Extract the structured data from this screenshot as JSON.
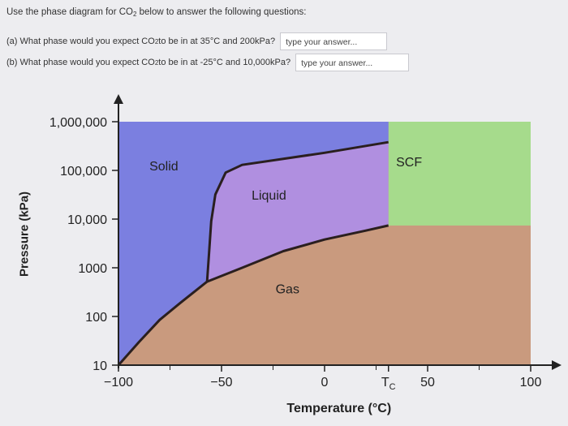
{
  "prompt": {
    "intro_pre": "Use the phase diagram for CO",
    "intro_sub": "2",
    "intro_post": " below to answer the following questions:"
  },
  "questions": [
    {
      "pre": "(a) What phase would you expect CO",
      "sub": "2",
      "post": " to be in at 35°C and 200kPa?",
      "placeholder": "type your answer..."
    },
    {
      "pre": "(b) What phase would you expect CO",
      "sub": "2",
      "post": " to be in at -25°C and 10,000kPa?",
      "placeholder": "type your answer..."
    }
  ],
  "chart_data": {
    "type": "area",
    "title": "",
    "xlabel": "Temperature (°C)",
    "ylabel": "Pressure (kPa)",
    "xlim": [
      -100,
      100
    ],
    "ylim": [
      10,
      1000000
    ],
    "y_scale": "log",
    "x_ticks": [
      "−100",
      "−50",
      "0",
      "50",
      "100"
    ],
    "x_tick_values": [
      -100,
      -50,
      0,
      50,
      100
    ],
    "tc_label": "T",
    "tc_sub": "C",
    "y_ticks": [
      "1,000,000",
      "100,000",
      "10,000",
      "1000",
      "100",
      "10"
    ],
    "y_tick_values": [
      1000000,
      100000,
      10000,
      1000,
      100,
      10
    ],
    "regions": [
      {
        "name": "Solid",
        "label": "Solid",
        "color": "#7b7fe0"
      },
      {
        "name": "Liquid",
        "label": "Liquid",
        "color": "#b08fe0"
      },
      {
        "name": "Gas",
        "label": "Gas",
        "color": "#c99a7e"
      },
      {
        "name": "SCF",
        "label": "SCF",
        "color": "#a6db8c"
      }
    ],
    "label_positions": {
      "Solid": [
        -78,
        100000
      ],
      "Liquid": [
        -27,
        25000
      ],
      "Gas": [
        -18,
        300
      ],
      "SCF": [
        41,
        120000
      ]
    },
    "critical_point": {
      "t": 31,
      "p": 7380
    },
    "triple_point": {
      "t": -57,
      "p": 518
    },
    "sublimation_curve": [
      [
        -100,
        10
      ],
      [
        -90,
        30
      ],
      [
        -80,
        85
      ],
      [
        -70,
        190
      ],
      [
        -57,
        518
      ]
    ],
    "vaporization_curve": [
      [
        -57,
        518
      ],
      [
        -40,
        1000
      ],
      [
        -20,
        2200
      ],
      [
        0,
        3800
      ],
      [
        20,
        5800
      ],
      [
        31,
        7380
      ]
    ],
    "melting_curve": [
      [
        -57,
        518
      ],
      [
        -56,
        2200
      ],
      [
        -55,
        9000
      ],
      [
        -53,
        32000
      ],
      [
        -48,
        90000
      ],
      [
        -40,
        130000
      ],
      [
        0,
        230000
      ],
      [
        31,
        380000
      ],
      [
        31,
        1000000
      ]
    ]
  }
}
